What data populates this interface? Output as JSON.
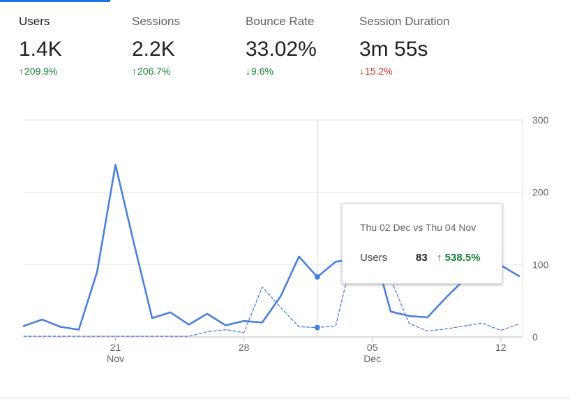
{
  "metrics": [
    {
      "label": "Users",
      "value": "1.4K",
      "arrow": "↑",
      "change": "209.9%",
      "direction": "up",
      "active": true
    },
    {
      "label": "Sessions",
      "value": "2.2K",
      "arrow": "↑",
      "change": "206.7%",
      "direction": "up",
      "active": false
    },
    {
      "label": "Bounce Rate",
      "value": "33.02%",
      "arrow": "↓",
      "change": "9.6%",
      "direction": "down",
      "active": false
    },
    {
      "label": "Session Duration",
      "value": "3m 55s",
      "arrow": "↓",
      "change": "15.2%",
      "direction": "down",
      "active": false
    }
  ],
  "colors": {
    "primary": "#4a80dd",
    "positive": "#188038",
    "negative": "#d93025",
    "accent": "#1a73e8"
  },
  "chart_data": {
    "type": "line",
    "x_tick_labels": [
      "21",
      "28",
      "05",
      "12"
    ],
    "x_tick_sublabels": [
      "Nov",
      "",
      "Dec",
      ""
    ],
    "y_ticks": [
      0,
      100,
      200,
      300
    ],
    "ylim": [
      0,
      300
    ],
    "grid": true,
    "series": [
      {
        "style": "solid",
        "values": [
          15,
          24,
          14,
          10,
          90,
          238,
          130,
          26,
          34,
          17,
          32,
          16,
          22,
          20,
          56,
          111,
          83,
          104,
          107,
          128,
          35,
          29,
          27,
          54,
          79,
          104,
          99,
          84
        ]
      },
      {
        "style": "dashed",
        "values": [
          1,
          1,
          1,
          1,
          1,
          1,
          1,
          1,
          1,
          1,
          7,
          10,
          6,
          69,
          41,
          14,
          13,
          15,
          120,
          126,
          80,
          19,
          8,
          11,
          15,
          19,
          9,
          18
        ]
      }
    ],
    "highlighted_index": 16
  },
  "tooltip": {
    "title": "Thu 02 Dec vs Thu 04 Nov",
    "metric_label": "Users",
    "value": "83",
    "arrow": "↑",
    "change": "538.5%"
  }
}
